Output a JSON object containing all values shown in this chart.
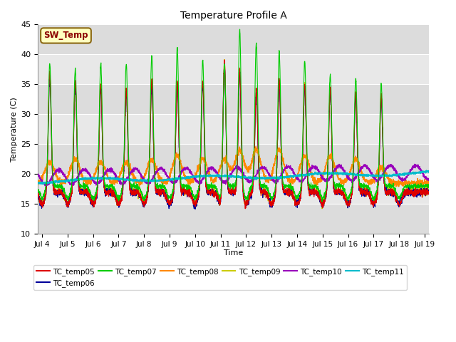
{
  "title": "Temperature Profile A",
  "xlabel": "Time",
  "ylabel": "Temperature (C)",
  "ylim": [
    10,
    45
  ],
  "xlim_days": [
    3.83,
    19.17
  ],
  "xtick_days": [
    4,
    5,
    6,
    7,
    8,
    9,
    10,
    11,
    12,
    13,
    14,
    15,
    16,
    17,
    18,
    19
  ],
  "xtick_labels": [
    "Jul 4",
    "Jul 5",
    "Jul 6",
    "Jul 7",
    "Jul 8",
    "Jul 9",
    "Jul 10",
    "Jul 11",
    "Jul 12",
    "Jul 13",
    "Jul 14",
    "Jul 15",
    "Jul 16",
    "Jul 17",
    "Jul 18",
    "Jul 19"
  ],
  "yticks": [
    10,
    15,
    20,
    25,
    30,
    35,
    40,
    45
  ],
  "SW_Temp_label": "SW_Temp",
  "SW_Temp_color": "#8B0000",
  "SW_Temp_bg": "#FFFFC0",
  "SW_Temp_border": "#8B6914",
  "series_colors": {
    "TC_temp05": "#DD0000",
    "TC_temp06": "#000099",
    "TC_temp07": "#00CC00",
    "TC_temp08": "#FF8800",
    "TC_temp09": "#CCCC00",
    "TC_temp10": "#9900BB",
    "TC_temp11": "#00BBCC"
  },
  "bg_color_plot": "#E8E8E8",
  "bg_color_stripe": "#D8D8D8",
  "bg_color_fig": "#FFFFFF",
  "grid_color": "#FFFFFF"
}
